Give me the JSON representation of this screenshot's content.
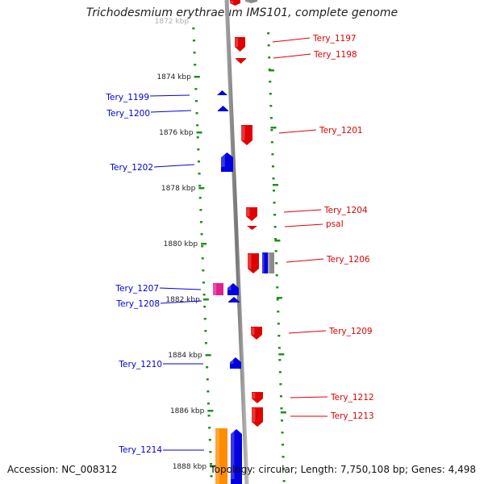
{
  "title": "Trichodesmium erythraeum IMS101, complete genome",
  "footer": {
    "accession": "Accession: NC_008312",
    "summary": "Topology: circular; Length: 7,750,108 bp; Genes: 4,498"
  },
  "colors": {
    "forward": "#e00000",
    "reverse": "#0000e0",
    "pink": "#e0208f",
    "orange": "#ff8c00",
    "gray": "#8a8a8a",
    "tick": "#1f8f1f",
    "backbone": "#777777"
  },
  "scale_labels": [
    {
      "label": "1872 kbp",
      "kbp": 1872,
      "partial": true
    },
    {
      "label": "1874 kbp",
      "kbp": 1874
    },
    {
      "label": "1876 kbp",
      "kbp": 1876
    },
    {
      "label": "1878 kbp",
      "kbp": 1878
    },
    {
      "label": "1880 kbp",
      "kbp": 1880
    },
    {
      "label": "1882 kbp",
      "kbp": 1882
    },
    {
      "label": "1884 kbp",
      "kbp": 1884
    },
    {
      "label": "1886 kbp",
      "kbp": 1886
    },
    {
      "label": "1888 kbp",
      "kbp": 1888
    }
  ],
  "genes": [
    {
      "label": "Tery_1197",
      "strand": "forward",
      "color": "forward"
    },
    {
      "label": "Tery_1198",
      "strand": "forward",
      "color": "forward"
    },
    {
      "label": "Tery_1199",
      "strand": "reverse",
      "color": "reverse"
    },
    {
      "label": "Tery_1200",
      "strand": "reverse",
      "color": "reverse"
    },
    {
      "label": "Tery_1201",
      "strand": "forward",
      "color": "forward"
    },
    {
      "label": "Tery_1202",
      "strand": "reverse",
      "color": "reverse"
    },
    {
      "label": "Tery_1204",
      "strand": "forward",
      "color": "forward"
    },
    {
      "label": "psaI",
      "strand": "forward",
      "color": "forward"
    },
    {
      "label": "Tery_1206",
      "strand": "forward",
      "color": "forward"
    },
    {
      "label": "Tery_1207",
      "strand": "reverse",
      "color": "pink"
    },
    {
      "label": "Tery_1208",
      "strand": "reverse",
      "color": "reverse"
    },
    {
      "label": "Tery_1209",
      "strand": "forward",
      "color": "forward"
    },
    {
      "label": "Tery_1210",
      "strand": "reverse",
      "color": "reverse"
    },
    {
      "label": "Tery_1212",
      "strand": "forward",
      "color": "forward"
    },
    {
      "label": "Tery_1213",
      "strand": "forward",
      "color": "forward"
    },
    {
      "label": "Tery_1214",
      "strand": "reverse",
      "color": "reverse"
    }
  ],
  "unlabeled_features": [
    {
      "name": "top-red-feature",
      "strand": "forward",
      "color": "forward"
    },
    {
      "name": "top-gray-feature",
      "strand": "forward",
      "color": "gray"
    },
    {
      "name": "tery-1206-gray-feature",
      "strand": "forward",
      "color": "gray"
    },
    {
      "name": "tery-1206-blue-feature",
      "strand": "reverse",
      "color": "reverse"
    },
    {
      "name": "bottom-orange-feature",
      "strand": "reverse",
      "color": "orange"
    },
    {
      "name": "bottom-blue-feature",
      "strand": "reverse",
      "color": "reverse"
    }
  ]
}
